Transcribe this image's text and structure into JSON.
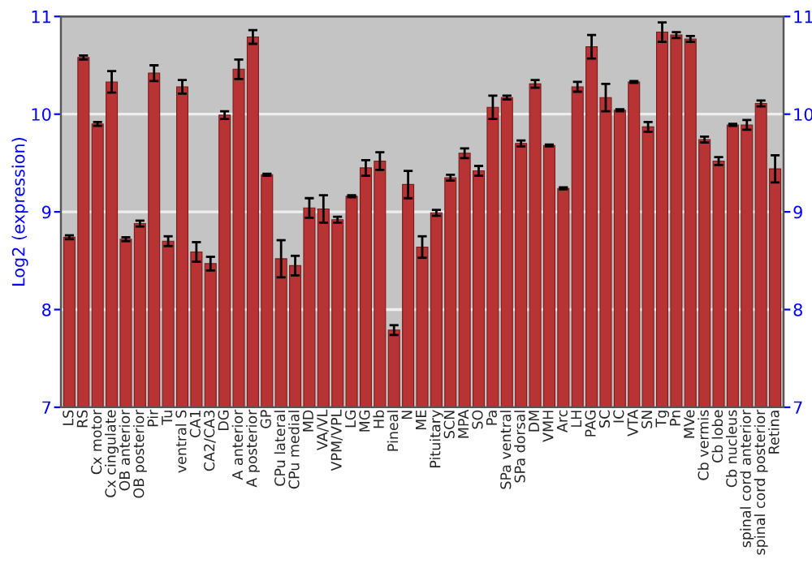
{
  "chart_data": {
    "type": "bar",
    "ylabel": "Log2 (expression)",
    "categories": [
      "LS",
      "RS",
      "Cx motor",
      "Cx cingulate",
      "OB anterior",
      "OB posterior",
      "Pir",
      "Tu",
      "ventral S",
      "CA1",
      "CA2/CA3",
      "DG",
      "A anterior",
      "A posterior",
      "GP",
      "CPu lateral",
      "CPu medial",
      "MD",
      "VA/VL",
      "VPM/VPL",
      "LG",
      "MG",
      "Hb",
      "Pineal",
      "N",
      "ME",
      "Pituitary",
      "SCN",
      "MPA",
      "SO",
      "Pa",
      "SPa ventral",
      "SPa dorsal",
      "DM",
      "VMH",
      "Arc",
      "LH",
      "PAG",
      "SC",
      "IC",
      "VTA",
      "SN",
      "Tg",
      "Pn",
      "MVe",
      "Cb vermis",
      "Cb lobe",
      "Cb nucleus",
      "spinal cord anterior",
      "spinal cord posterior",
      "Retina"
    ],
    "values": [
      8.74,
      10.58,
      9.9,
      10.33,
      8.72,
      8.88,
      10.42,
      8.7,
      10.28,
      8.59,
      8.47,
      9.99,
      10.46,
      10.79,
      9.38,
      8.52,
      8.45,
      9.04,
      9.03,
      8.92,
      9.16,
      9.45,
      9.52,
      7.79,
      9.28,
      8.64,
      8.99,
      9.35,
      9.6,
      9.42,
      10.07,
      10.17,
      9.7,
      10.31,
      9.68,
      9.24,
      10.28,
      10.69,
      10.17,
      10.04,
      10.33,
      9.87,
      10.84,
      10.81,
      10.77,
      9.74,
      9.52,
      9.89,
      9.89,
      10.11,
      9.44
    ],
    "errors": [
      0.02,
      0.02,
      0.02,
      0.11,
      0.02,
      0.03,
      0.08,
      0.05,
      0.07,
      0.1,
      0.07,
      0.04,
      0.1,
      0.07,
      0.01,
      0.19,
      0.1,
      0.1,
      0.14,
      0.03,
      0.01,
      0.08,
      0.09,
      0.05,
      0.14,
      0.11,
      0.03,
      0.03,
      0.05,
      0.05,
      0.12,
      0.02,
      0.03,
      0.04,
      0.01,
      0.01,
      0.05,
      0.12,
      0.14,
      0.01,
      0.01,
      0.05,
      0.1,
      0.03,
      0.03,
      0.03,
      0.04,
      0.01,
      0.05,
      0.03,
      0.14
    ],
    "color": "#b83434",
    "ylim": [
      7,
      11
    ],
    "yticks": [
      7,
      8,
      9,
      10,
      11
    ],
    "y2lim": [
      7,
      11
    ],
    "y2ticks": [
      7,
      8,
      9,
      10,
      11
    ],
    "grid": "y"
  }
}
